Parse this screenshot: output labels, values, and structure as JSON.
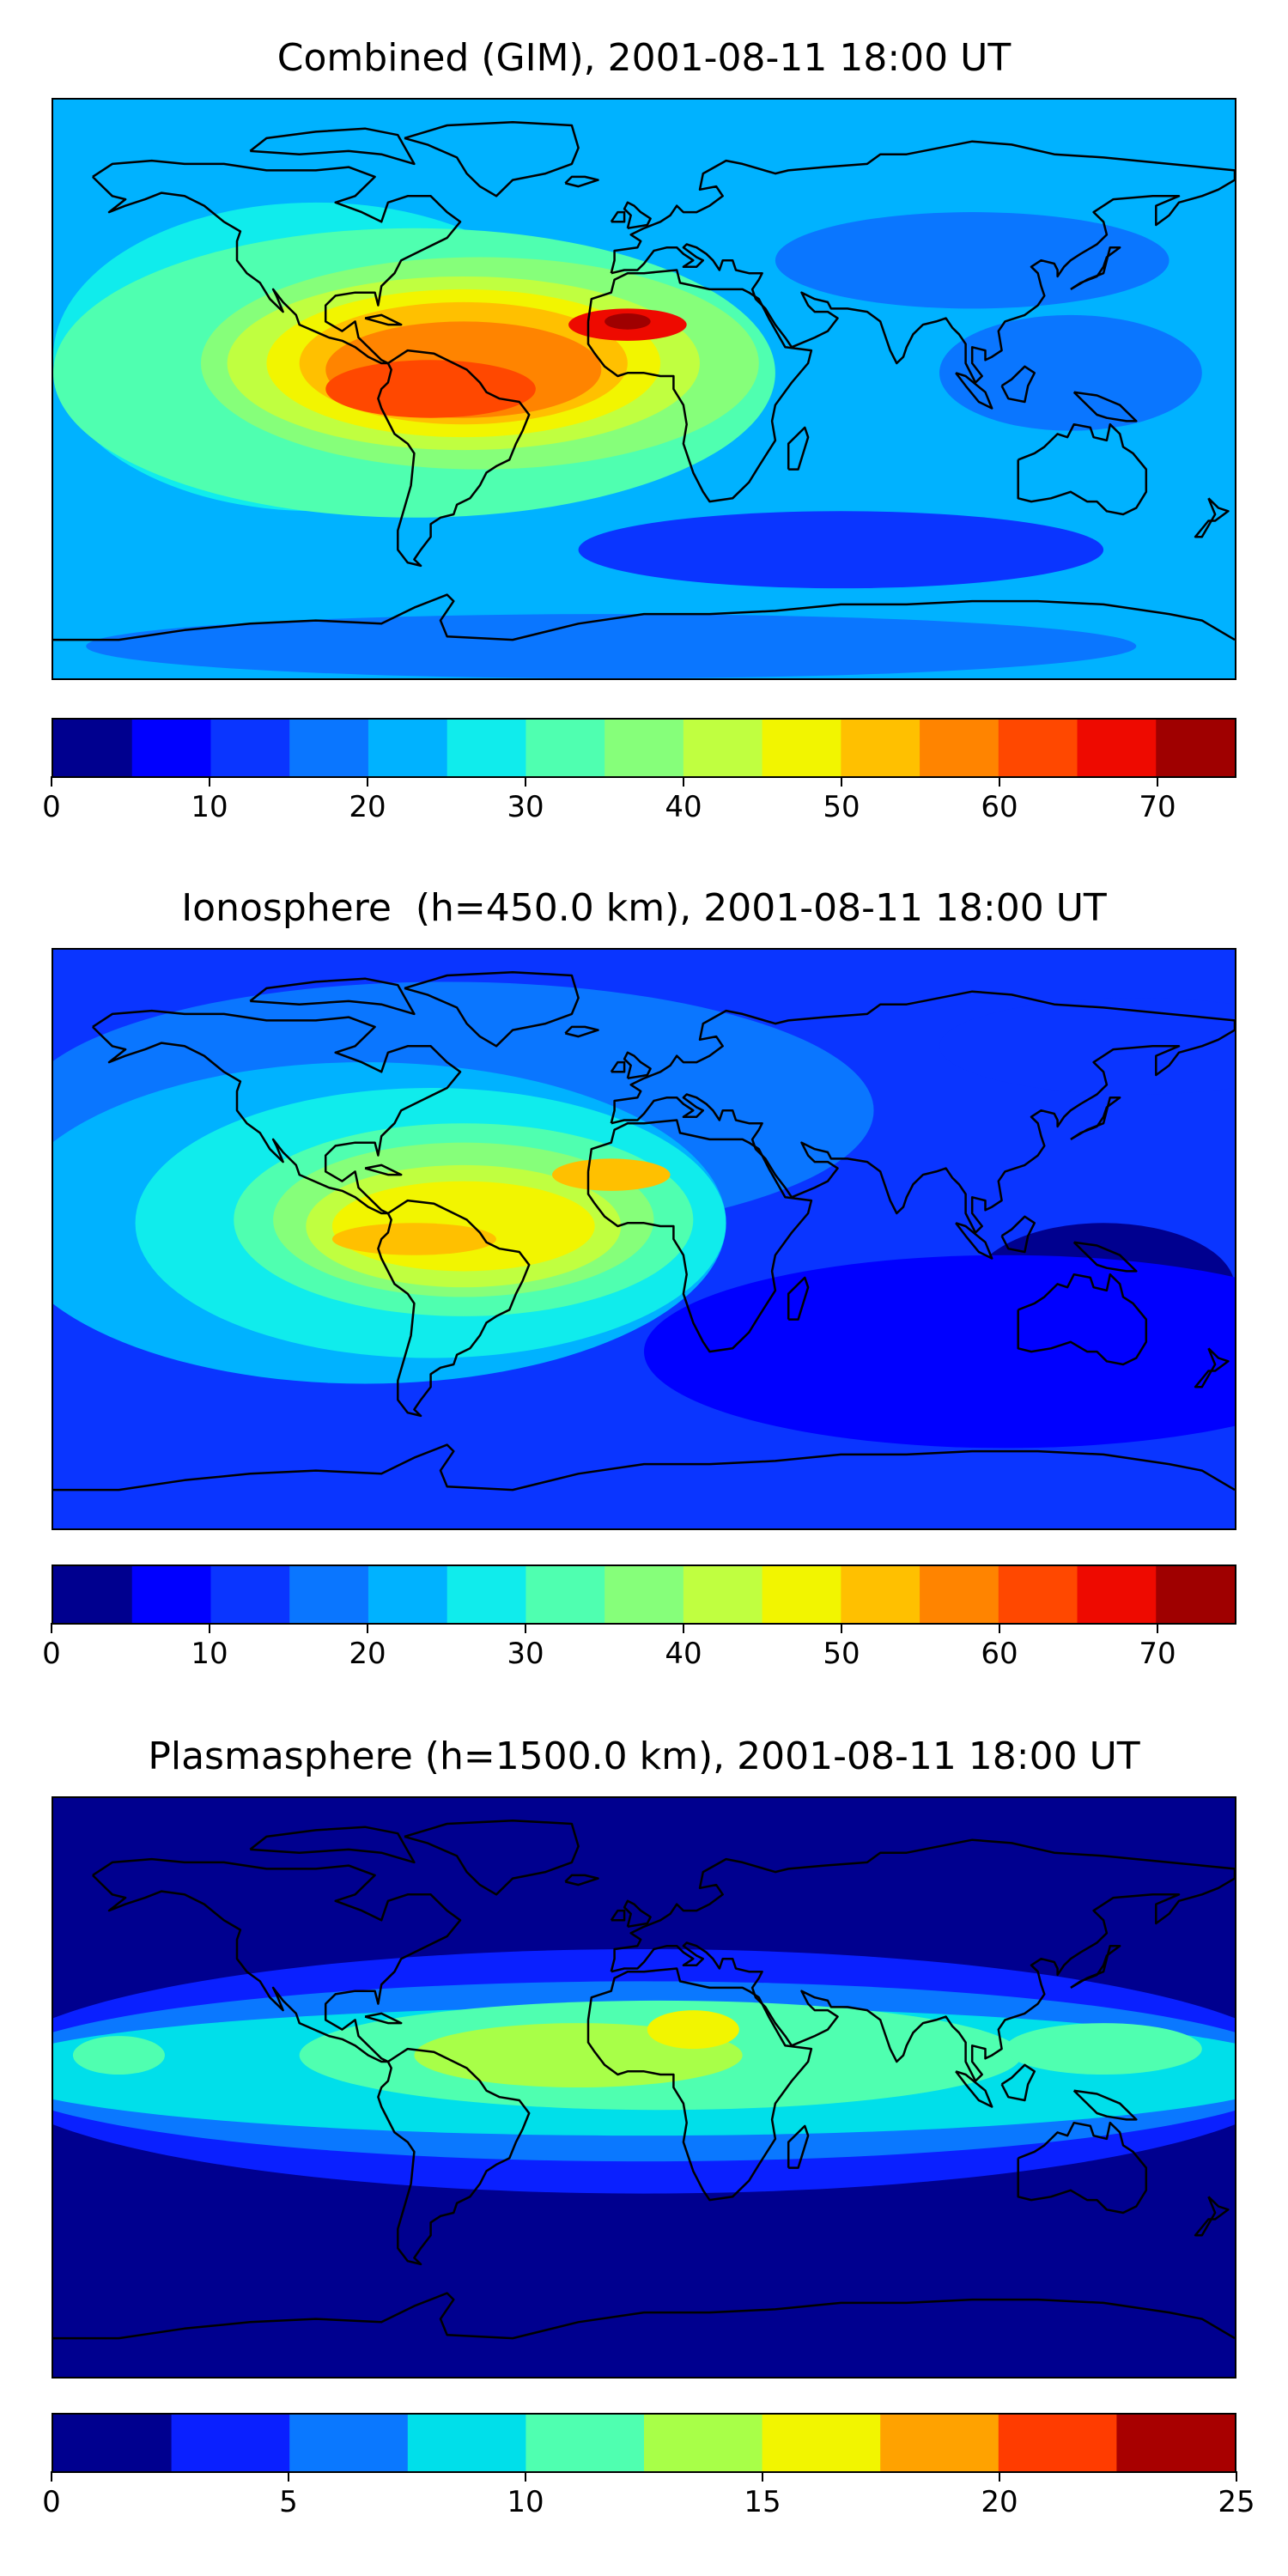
{
  "chart_data": [
    {
      "type": "contourf-map",
      "title": "Combined (GIM), 2001-08-11 18:00 UT",
      "colorbar": {
        "vmin": 0,
        "vmax": 75,
        "levels": [
          0,
          5,
          10,
          15,
          20,
          25,
          30,
          35,
          40,
          45,
          50,
          55,
          60,
          65,
          70,
          75
        ],
        "colors": [
          "#00008f",
          "#0000ff",
          "#0a35ff",
          "#0a76ff",
          "#00b2ff",
          "#10ecec",
          "#4fffb0",
          "#86ff7a",
          "#c0ff40",
          "#f2f500",
          "#ffc000",
          "#ff8400",
          "#ff4800",
          "#ee0a00",
          "#9f0000"
        ],
        "ticks": [
          0,
          10,
          20,
          30,
          40,
          50,
          60,
          70
        ],
        "tick_labels": [
          "0",
          "10",
          "20",
          "30",
          "40",
          "50",
          "60",
          "70"
        ]
      },
      "field": {
        "background_level": 4,
        "blobs": [
          {
            "lon": -100,
            "lat": 10,
            "rx": 80,
            "ry": 48,
            "level": 5
          },
          {
            "lon": -70,
            "lat": 5,
            "rx": 110,
            "ry": 45,
            "level": 6
          },
          {
            "lon": -50,
            "lat": 8,
            "rx": 85,
            "ry": 33,
            "level": 7
          },
          {
            "lon": -55,
            "lat": 8,
            "rx": 72,
            "ry": 27,
            "level": 8
          },
          {
            "lon": -55,
            "lat": 8,
            "rx": 60,
            "ry": 23,
            "level": 9
          },
          {
            "lon": -55,
            "lat": 8,
            "rx": 50,
            "ry": 19,
            "level": 10
          },
          {
            "lon": -55,
            "lat": 6,
            "rx": 42,
            "ry": 15,
            "level": 11
          },
          {
            "lon": -65,
            "lat": 0,
            "rx": 32,
            "ry": 9,
            "level": 12
          },
          {
            "lon": -5,
            "lat": 20,
            "rx": 18,
            "ry": 5,
            "level": 13
          },
          {
            "lon": -5,
            "lat": 21,
            "rx": 7,
            "ry": 2.5,
            "level": 14
          },
          {
            "lon": 100,
            "lat": 40,
            "rx": 60,
            "ry": 15,
            "level": 3
          },
          {
            "lon": 130,
            "lat": 5,
            "rx": 40,
            "ry": 18,
            "level": 3
          },
          {
            "lon": 60,
            "lat": -50,
            "rx": 80,
            "ry": 12,
            "level": 2
          },
          {
            "lon": -10,
            "lat": -80,
            "rx": 160,
            "ry": 10,
            "level": 3
          }
        ]
      }
    },
    {
      "type": "contourf-map",
      "title": "Ionosphere  (h=450.0 km), 2001-08-11 18:00 UT",
      "colorbar": {
        "vmin": 0,
        "vmax": 75,
        "levels": [
          0,
          5,
          10,
          15,
          20,
          25,
          30,
          35,
          40,
          45,
          50,
          55,
          60,
          65,
          70,
          75
        ],
        "colors": [
          "#00008f",
          "#0000ff",
          "#0a35ff",
          "#0a76ff",
          "#00b2ff",
          "#10ecec",
          "#4fffb0",
          "#86ff7a",
          "#c0ff40",
          "#f2f500",
          "#ffc000",
          "#ff8400",
          "#ff4800",
          "#ee0a00",
          "#9f0000"
        ],
        "ticks": [
          0,
          10,
          20,
          30,
          40,
          50,
          60,
          70
        ],
        "tick_labels": [
          "0",
          "10",
          "20",
          "30",
          "40",
          "50",
          "60",
          "70"
        ]
      },
      "field": {
        "background_level": 2,
        "blobs": [
          {
            "lon": -60,
            "lat": 40,
            "rx": 130,
            "ry": 40,
            "level": 3
          },
          {
            "lon": -85,
            "lat": 5,
            "rx": 110,
            "ry": 50,
            "level": 4
          },
          {
            "lon": -65,
            "lat": 5,
            "rx": 90,
            "ry": 42,
            "level": 5
          },
          {
            "lon": -55,
            "lat": 6,
            "rx": 70,
            "ry": 30,
            "level": 6
          },
          {
            "lon": -55,
            "lat": 6,
            "rx": 58,
            "ry": 24,
            "level": 7
          },
          {
            "lon": -55,
            "lat": 4,
            "rx": 48,
            "ry": 19,
            "level": 8
          },
          {
            "lon": -55,
            "lat": 4,
            "rx": 40,
            "ry": 14,
            "level": 9
          },
          {
            "lon": -70,
            "lat": 0,
            "rx": 25,
            "ry": 5,
            "level": 10
          },
          {
            "lon": -10,
            "lat": 20,
            "rx": 18,
            "ry": 5,
            "level": 10
          },
          {
            "lon": 110,
            "lat": -35,
            "rx": 110,
            "ry": 30,
            "level": 1
          },
          {
            "lon": 140,
            "lat": -15,
            "rx": 40,
            "ry": 20,
            "level": 0
          },
          {
            "lon": 150,
            "lat": 60,
            "rx": 60,
            "ry": 15,
            "level": 2
          }
        ]
      }
    },
    {
      "type": "contourf-map",
      "title": "Plasmasphere (h=1500.0 km), 2001-08-11 18:00 UT",
      "colorbar": {
        "vmin": 0,
        "vmax": 25,
        "levels": [
          0,
          2.5,
          5,
          7.5,
          10,
          12.5,
          15,
          17.5,
          20,
          22.5,
          25
        ],
        "colors": [
          "#00008f",
          "#0a20ff",
          "#0a78ff",
          "#00dfea",
          "#4fffb0",
          "#a8ff48",
          "#f2f500",
          "#ffa200",
          "#ff3c00",
          "#a80000"
        ],
        "ticks": [
          0,
          5,
          10,
          15,
          20,
          25
        ],
        "tick_labels": [
          "0",
          "5",
          "10",
          "15",
          "20",
          "25"
        ]
      },
      "field": {
        "background_level": 0,
        "blobs": [
          {
            "lon": 0,
            "lat": 5,
            "rx": 200,
            "ry": 38,
            "level": 1
          },
          {
            "lon": 0,
            "lat": 5,
            "rx": 200,
            "ry": 28,
            "level": 2
          },
          {
            "lon": 0,
            "lat": 5,
            "rx": 200,
            "ry": 20,
            "level": 3
          },
          {
            "lon": 5,
            "lat": 10,
            "rx": 110,
            "ry": 17,
            "level": 4
          },
          {
            "lon": -160,
            "lat": 10,
            "rx": 14,
            "ry": 6,
            "level": 4
          },
          {
            "lon": 140,
            "lat": 12,
            "rx": 30,
            "ry": 8,
            "level": 4
          },
          {
            "lon": -20,
            "lat": 10,
            "rx": 50,
            "ry": 10,
            "level": 5
          },
          {
            "lon": 15,
            "lat": 18,
            "rx": 14,
            "ry": 6,
            "level": 6
          },
          {
            "lon": 45,
            "lat": 5,
            "rx": 6,
            "ry": 5,
            "level": 3
          }
        ]
      }
    }
  ]
}
